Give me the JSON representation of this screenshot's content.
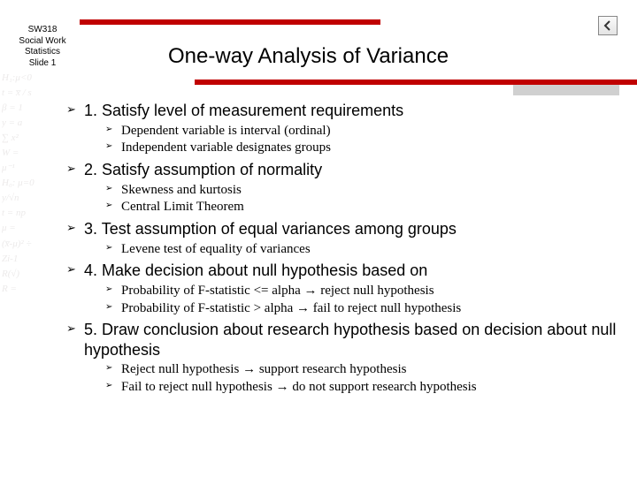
{
  "header": {
    "course": "SW318",
    "dept": "Social Work",
    "subject": "Statistics",
    "slide": "Slide 1"
  },
  "title": "One-way Analysis of Variance",
  "colors": {
    "accent": "#c00000",
    "gray_block": "#d0d0d0",
    "text": "#000000",
    "watermark": "#eceaea",
    "background": "#ffffff"
  },
  "typography": {
    "title_fontsize_pt": 24,
    "main_item_fontsize_pt": 18,
    "sub_item_fontsize_pt": 15,
    "header_label_fontsize_pt": 10,
    "title_font": "Verdana",
    "sub_item_font": "Times New Roman"
  },
  "bullets": [
    {
      "text": "1. Satisfy level of measurement requirements",
      "subs": [
        "Dependent variable is interval (ordinal)",
        "Independent variable designates groups"
      ]
    },
    {
      "text": "2. Satisfy assumption of normality",
      "subs": [
        "Skewness and kurtosis",
        "Central Limit Theorem"
      ]
    },
    {
      "text": "3. Test assumption of equal variances among groups",
      "subs": [
        "Levene test of equality of variances"
      ]
    },
    {
      "text": "4. Make decision about null hypothesis based on",
      "subs": [
        "Probability of F-statistic <= alpha → reject null hypothesis",
        "Probability of F-statistic > alpha → fail to reject null hypothesis"
      ]
    },
    {
      "text": "5. Draw conclusion about research hypothesis based on decision about null hypothesis",
      "subs": [
        "Reject null hypothesis → support research hypothesis",
        "Fail to reject null hypothesis → do not support research hypothesis"
      ]
    }
  ],
  "watermark_lines": [
    "H₁:μ<0",
    "t = x̅ / s",
    "β = 1",
    "y = a",
    "∑ x²",
    "W =",
    "μ⁻¹",
    "H₀: μ=0",
    "y/√n",
    "t = np",
    "μ =",
    "(x̅-μ)² ÷",
    "Zi-1",
    "R(√)",
    "R ="
  ]
}
